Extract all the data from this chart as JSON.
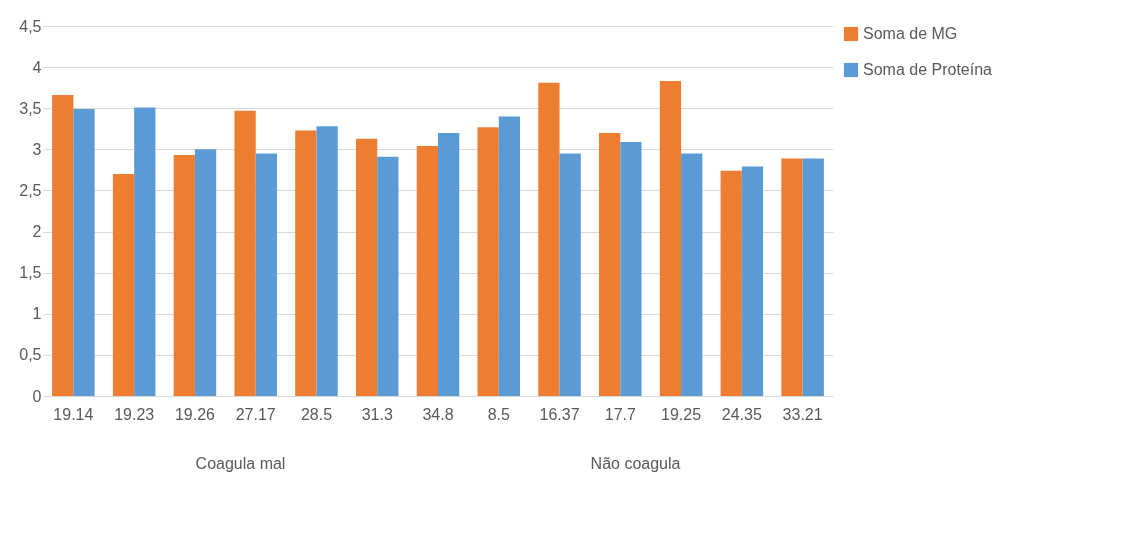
{
  "chart_data": {
    "type": "bar",
    "categories": [
      "19.14",
      "19.23",
      "19.26",
      "27.17",
      "28.5",
      "31.3",
      "34.8",
      "8.5",
      "16.37",
      "17.7",
      "19.25",
      "24.35",
      "33.21"
    ],
    "series": [
      {
        "name": "Soma de MG",
        "color": "#ed7d31",
        "values": [
          3.66,
          2.7,
          2.93,
          3.47,
          3.23,
          3.13,
          3.04,
          3.27,
          3.81,
          3.2,
          3.83,
          2.74,
          2.89
        ]
      },
      {
        "name": "Soma de Proteína",
        "color": "#5b9bd5",
        "values": [
          3.49,
          3.51,
          3.0,
          2.95,
          3.28,
          2.91,
          3.2,
          3.4,
          2.95,
          3.09,
          2.95,
          2.79,
          2.89
        ]
      }
    ],
    "ylim": [
      0,
      4.5
    ],
    "yticks": [
      0,
      {
        "value": 0.5,
        "label": "0,5"
      },
      1,
      {
        "value": 1.5,
        "label": "1,5"
      },
      2,
      {
        "value": 2.5,
        "label": "2,5"
      },
      3,
      {
        "value": 3.5,
        "label": "3,5"
      },
      4,
      {
        "value": 4.5,
        "label": "4,5"
      }
    ],
    "annotations": [
      "Coagula mal",
      "Não coagula"
    ],
    "grid": "y",
    "legend": "right"
  }
}
